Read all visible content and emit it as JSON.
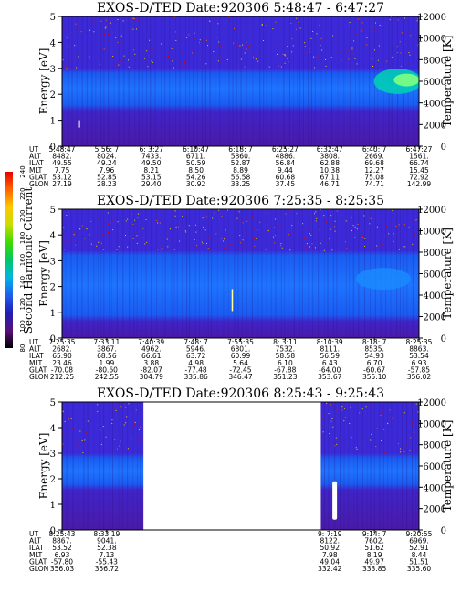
{
  "chart_data": [
    {
      "type": "heatmap",
      "title": "EXOS-D/TED    Date:920306  5:48:47 - 6:47:27",
      "ylabel": "Energy [eV]",
      "ylabel_right": "Temperature [K]",
      "y_ticks": [
        "0",
        "1",
        "2",
        "3",
        "4",
        "5"
      ],
      "y_right_ticks": [
        "0",
        "2000",
        "4000",
        "6000",
        "8000",
        "10000",
        "12000"
      ],
      "ylim": [
        0,
        5
      ],
      "ylim_right": [
        0,
        12000
      ],
      "coverage": [
        [
          0,
          1
        ]
      ],
      "band": {
        "low": 1.6,
        "high": 2.8
      },
      "orbit_table": {
        "row_labels": [
          "UT",
          "ALT",
          "ILAT",
          "MLT",
          "GLAT",
          "GLON"
        ],
        "columns": [
          [
            "5:48:47",
            "8482.",
            "49.55",
            "7.75",
            "53.12",
            "27.19"
          ],
          [
            "5:56: 7",
            "8024.",
            "49.24",
            "7.96",
            "52.85",
            "28.23"
          ],
          [
            "6: 3:27",
            "7433.",
            "49.50",
            "8.21",
            "53.15",
            "29.40"
          ],
          [
            "6:10:47",
            "6711.",
            "50.59",
            "8.50",
            "54.26",
            "30.92"
          ],
          [
            "6:18: 7",
            "5860.",
            "52.87",
            "8.89",
            "56.58",
            "33.25"
          ],
          [
            "6:25:27",
            "4886.",
            "56.84",
            "9.44",
            "60.68",
            "37.45"
          ],
          [
            "6:32:47",
            "3808.",
            "62.88",
            "10.38",
            "67.11",
            "46.71"
          ],
          [
            "6:40: 7",
            "2669.",
            "69.68",
            "12.27",
            "75.08",
            "74.71"
          ],
          [
            "6:47:27",
            "1561.",
            "66.74",
            "15.45",
            "72.92",
            "142.99"
          ]
        ]
      }
    },
    {
      "type": "heatmap",
      "title": "EXOS-D/TED    Date:920306  7:25:35 - 8:25:35",
      "ylabel": "Energy [eV]",
      "ylabel_right": "Temperature [K]",
      "y_ticks": [
        "0",
        "1",
        "2",
        "3",
        "4",
        "5"
      ],
      "y_right_ticks": [
        "0",
        "2000",
        "4000",
        "6000",
        "8000",
        "10000",
        "12000"
      ],
      "ylim": [
        0,
        5
      ],
      "ylim_right": [
        0,
        12000
      ],
      "coverage": [
        [
          0,
          1
        ]
      ],
      "band": {
        "low": 0.9,
        "high": 3.2
      },
      "orbit_table": {
        "row_labels": [
          "UT",
          "ALT",
          "ILAT",
          "MLT",
          "GLAT",
          "GLON"
        ],
        "columns": [
          [
            "7:25:35",
            "2682.",
            "65.90",
            "23.46",
            "-70.08",
            "212.25"
          ],
          [
            "7:33:11",
            "3867.",
            "68.56",
            "1.99",
            "-80.60",
            "242.55"
          ],
          [
            "7:40:39",
            "4962.",
            "66.61",
            "3.88",
            "-82.07",
            "304.79"
          ],
          [
            "7:48: 7",
            "5946.",
            "63.72",
            "4.98",
            "-77.48",
            "335.86"
          ],
          [
            "7:55:35",
            "6801.",
            "60.99",
            "5.64",
            "-72.45",
            "346.47"
          ],
          [
            "8: 3:11",
            "7532.",
            "58.58",
            "6.10",
            "-67.88",
            "351.23"
          ],
          [
            "8:10:39",
            "8111.",
            "56.59",
            "6.43",
            "-64.00",
            "353.67"
          ],
          [
            "8:18: 7",
            "8535.",
            "54.93",
            "6.70",
            "-60.67",
            "355.10"
          ],
          [
            "8:25:35",
            "8863.",
            "53.54",
            "6.93",
            "-57.85",
            "356.02"
          ]
        ]
      }
    },
    {
      "type": "heatmap",
      "title": "EXOS-D/TED    Date:920306  8:25:43 - 9:25:43",
      "ylabel": "Energy [eV]",
      "ylabel_right": "Temperature [K]",
      "y_ticks": [
        "0",
        "1",
        "2",
        "3",
        "4",
        "5"
      ],
      "y_right_ticks": [
        "0",
        "2000",
        "4000",
        "6000",
        "8000",
        "10000",
        "12000"
      ],
      "ylim": [
        0,
        5
      ],
      "ylim_right": [
        0,
        12000
      ],
      "coverage": [
        [
          0,
          0.228
        ],
        [
          0.725,
          1
        ]
      ],
      "band": {
        "low": 1.8,
        "high": 2.8
      },
      "orbit_table": {
        "row_labels": [
          "UT",
          "ALT",
          "ILAT",
          "MLT",
          "GLAT",
          "GLON"
        ],
        "columns": [
          [
            "8:25:43",
            "8867.",
            "53.52",
            "6.93",
            "-57.80",
            "356.03"
          ],
          [
            "8:33:19",
            "9041.",
            "52.38",
            "7.13",
            "-55.43",
            "356.72"
          ],
          [
            "",
            "",
            "",
            "",
            "",
            ""
          ],
          [
            "",
            "",
            "",
            "",
            "",
            ""
          ],
          [
            "",
            "",
            "",
            "",
            "",
            ""
          ],
          [
            "",
            "",
            "",
            "",
            "",
            ""
          ],
          [
            "9: 7:19",
            "8122.",
            "50.92",
            "7.98",
            "49.04",
            "332.42"
          ],
          [
            "9:14: 7",
            "7602.",
            "51.62",
            "8.19",
            "49.97",
            "333.85"
          ],
          [
            "9:20:55",
            "6969.",
            "52.91",
            "8.44",
            "51.51",
            "335.60"
          ]
        ]
      }
    }
  ],
  "colorbar": {
    "label": "Second Harmonic Current",
    "ticks": [
      "80",
      "100",
      "120",
      "140",
      "160",
      "180",
      "200",
      "220",
      "240"
    ],
    "colors": [
      "#000000",
      "#5a0f7a",
      "#1f1fb4",
      "#1e5ef0",
      "#00b4e6",
      "#00c864",
      "#3cdc00",
      "#c8dc00",
      "#ffc800",
      "#ff6400",
      "#e60000"
    ]
  }
}
